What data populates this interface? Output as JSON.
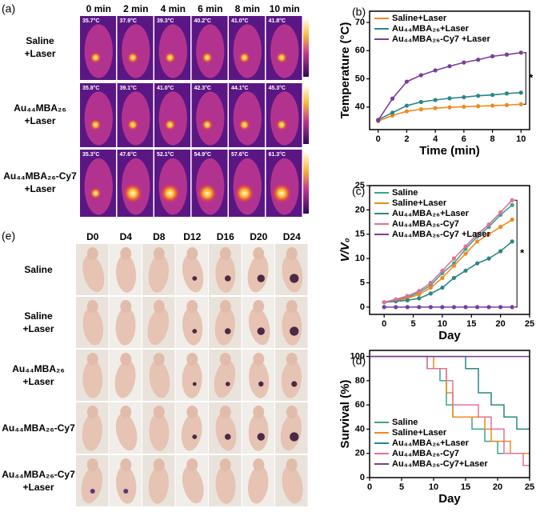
{
  "panel_labels": [
    "(a)",
    "(b)",
    "(c)",
    "(d)",
    "(e)"
  ],
  "thermal": {
    "columns": [
      "0 min",
      "2 min",
      "4 min",
      "6 min",
      "8 min",
      "10 min"
    ],
    "rows": [
      {
        "label": [
          "Saline",
          "+Laser"
        ],
        "temperatures": [
          "35.7°C",
          "37.9°C",
          "39.3°C",
          "40.2°C",
          "41.0°C",
          "41.8°C"
        ]
      },
      {
        "label": [
          "Au₄₄MBA₂₆",
          "+Laser"
        ],
        "temperatures": [
          "35.8°C",
          "39.1°C",
          "41.0°C",
          "42.3°C",
          "44.1°C",
          "45.3°C"
        ]
      },
      {
        "label": [
          "Au₄₄MBA₂₆-Cy7",
          "+Laser"
        ],
        "temperatures": [
          "35.3°C",
          "47.6°C",
          "52.1°C",
          "54.9°C",
          "57.6°C",
          "61.3°C"
        ]
      }
    ]
  },
  "photos": {
    "columns": [
      "D0",
      "D4",
      "D8",
      "D12",
      "D16",
      "D20",
      "D24"
    ],
    "rows": [
      [
        "Saline"
      ],
      [
        "Saline",
        "+Laser"
      ],
      [
        "Au₄₄MBA₂₆",
        "+Laser"
      ],
      [
        "Au₄₄MBA₂₆-Cy7"
      ],
      [
        "Au₄₄MBA₂₆-Cy7",
        "+Laser"
      ]
    ]
  },
  "chart_data": [
    {
      "type": "line",
      "xlabel": "Time (min)",
      "ylabel": "Temperature (°C)",
      "x": [
        0,
        1,
        2,
        3,
        4,
        5,
        6,
        7,
        8,
        9,
        10
      ],
      "xlim": [
        -0.6,
        10.6
      ],
      "xticks": [
        0,
        2,
        4,
        6,
        8,
        10
      ],
      "ylim": [
        32,
        74
      ],
      "yticks": [
        40,
        50,
        60,
        70
      ],
      "legend": "upper left",
      "annotation": "*",
      "series": [
        {
          "name": "Saline+Laser",
          "color": "#f08a1c",
          "values": [
            35,
            37,
            38.5,
            39.2,
            39.6,
            39.9,
            40.1,
            40.3,
            40.5,
            40.7,
            41.0
          ]
        },
        {
          "name": "Au₄₄MBA₂₆+Laser",
          "color": "#2b8686",
          "values": [
            35.5,
            38,
            40.5,
            41.8,
            42.5,
            43.1,
            43.5,
            44,
            44.3,
            44.8,
            45.1
          ]
        },
        {
          "name": "Au₄₄MBA₂₆-Cy7 +Laser",
          "color": "#7a3d9a",
          "values": [
            35.3,
            43,
            49,
            51.3,
            53,
            54.5,
            55.8,
            56.8,
            58,
            58.6,
            59.3
          ]
        }
      ]
    },
    {
      "type": "line",
      "xlabel": "Day",
      "ylabel": "V/V₀",
      "x": [
        0,
        2,
        4,
        6,
        8,
        10,
        12,
        14,
        16,
        18,
        20,
        22
      ],
      "xlim": [
        -2.5,
        25
      ],
      "xticks": [
        0,
        5,
        10,
        15,
        20,
        25
      ],
      "ylim": [
        -1.5,
        25
      ],
      "yticks": [
        0,
        5,
        10,
        15,
        20,
        25
      ],
      "legend": "upper left",
      "annotation": "*",
      "series": [
        {
          "name": "Saline",
          "color": "#3aa38f",
          "values": [
            1,
            1.5,
            2,
            3,
            4.5,
            7,
            9,
            12,
            14.5,
            16.5,
            19,
            21
          ]
        },
        {
          "name": "Saline+Laser",
          "color": "#f08a1c",
          "values": [
            1,
            1.3,
            1.8,
            2.6,
            4,
            6,
            8.5,
            11,
            13.5,
            15,
            16.5,
            18
          ]
        },
        {
          "name": "Au₄₄MBA₂₆+Laser",
          "color": "#2b8686",
          "values": [
            1,
            1.2,
            1.4,
            1.8,
            2.8,
            4,
            6,
            7.5,
            9,
            10,
            11.5,
            13.5
          ]
        },
        {
          "name": "Au₄₄MBA₂₆-Cy7",
          "color": "#e0709a",
          "values": [
            1,
            1.6,
            2.3,
            3.3,
            5,
            7.5,
            10,
            12.5,
            15,
            17,
            19.5,
            22
          ]
        },
        {
          "name": "Au₄₄MBA₂₆-Cy7 +Laser",
          "color": "#7a3d9a",
          "values": [
            0,
            0,
            0,
            0,
            0,
            0,
            0,
            0,
            0,
            0,
            0,
            0
          ]
        }
      ]
    },
    {
      "type": "step",
      "xlabel": "Day",
      "ylabel": "Survival (%)",
      "xlim": [
        0,
        25
      ],
      "xticks": [
        0,
        5,
        10,
        15,
        20,
        25
      ],
      "ylim": [
        0,
        105
      ],
      "yticks": [
        0,
        20,
        40,
        60,
        80,
        100
      ],
      "legend": "lower left",
      "series": [
        {
          "name": "Saline",
          "color": "#3aa38f",
          "x": [
            0,
            9,
            11,
            12,
            13,
            16,
            18,
            20,
            25
          ],
          "values": [
            100,
            90,
            80,
            60,
            50,
            40,
            30,
            20,
            20
          ]
        },
        {
          "name": "Saline+Laser",
          "color": "#f08a1c",
          "x": [
            0,
            10,
            12,
            13,
            18,
            19,
            22,
            25
          ],
          "values": [
            100,
            90,
            70,
            50,
            40,
            30,
            20,
            20
          ]
        },
        {
          "name": "Au₄₄MBA₂₆+Laser",
          "color": "#2b8686",
          "x": [
            0,
            15,
            17,
            19,
            21,
            23,
            25
          ],
          "values": [
            100,
            90,
            70,
            60,
            50,
            40,
            40
          ]
        },
        {
          "name": "Au₄₄MBA₂₆-Cy7",
          "color": "#e0709a",
          "x": [
            0,
            9,
            12,
            13,
            17,
            19,
            21,
            24,
            25
          ],
          "values": [
            100,
            90,
            80,
            60,
            50,
            40,
            20,
            10,
            10
          ]
        },
        {
          "name": "Au₄₄MBA₂₆-Cy7+Laser",
          "color": "#7a3d9a",
          "x": [
            0,
            25
          ],
          "values": [
            100,
            100
          ]
        }
      ]
    }
  ]
}
